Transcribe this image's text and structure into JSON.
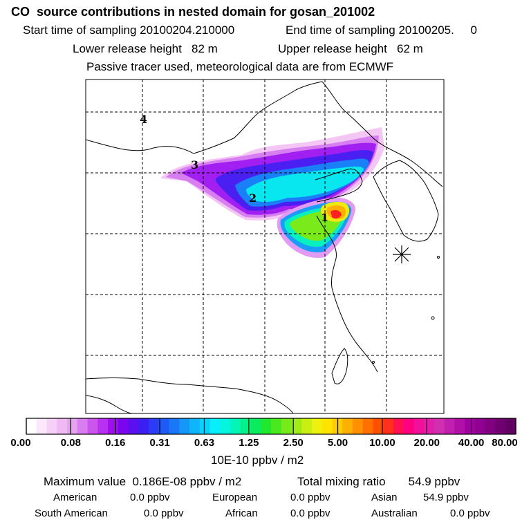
{
  "header": {
    "title": "CO  source contributions in nested domain for gosan_201002",
    "start_label": "Start time of sampling 20100204.210000",
    "end_label": "End time of sampling 20100205.     0",
    "lower_label": "Lower release height   82 m",
    "upper_label": "Upper release height   62 m",
    "tracer_note": "Passive tracer used, meteorological data are from ECMWF"
  },
  "chart_data": {
    "type": "heatmap",
    "title": "CO  source contributions in nested domain for gosan_201002",
    "region_markers": [
      "1",
      "2",
      "3",
      "4"
    ],
    "site_marker": "receptor (Gosan)",
    "colorbar": {
      "ticks": [
        "0.00",
        "0.08",
        "0.16",
        "0.31",
        "0.63",
        "1.25",
        "2.50",
        "5.00",
        "10.00",
        "20.00",
        "40.00",
        "80.00"
      ],
      "units": "10E-10 ppbv / m2",
      "colors": [
        "#ffffff",
        "#fbe8fb",
        "#f5d1f7",
        "#efbaf3",
        "#e6a3f0",
        "#da7df0",
        "#cc55f0",
        "#b930f0",
        "#9f10f0",
        "#7a05ee",
        "#5a10f0",
        "#3b1ff2",
        "#2a3cf5",
        "#1f5af7",
        "#1a78f8",
        "#1596f9",
        "#0fb4fa",
        "#0ad2fb",
        "#08eefa",
        "#05f5e0",
        "#05f5b6",
        "#05f08a",
        "#0aec5c",
        "#20e830",
        "#4ae81e",
        "#76ea1a",
        "#a0ec16",
        "#c8ee12",
        "#eef00e",
        "#ffe400",
        "#ffcc00",
        "#ffb000",
        "#ff9000",
        "#ff7000",
        "#ff5000",
        "#ff3020",
        "#ff1050",
        "#ff0080",
        "#f0109a",
        "#e020a8",
        "#d030b0",
        "#c020b0",
        "#b010a8",
        "#a000a0",
        "#900090",
        "#800080",
        "#700070",
        "#600060"
      ]
    },
    "stats": {
      "max_label": "Maximum value  0.186E-08 ppbv / m2",
      "total_label": "Total mixing ratio       54.9 ppbv"
    },
    "contributions": [
      {
        "name": "American",
        "value": "0.0 ppbv"
      },
      {
        "name": "European",
        "value": "0.0 ppbv"
      },
      {
        "name": "Asian",
        "value": "54.9 ppbv"
      },
      {
        "name": "South American",
        "value": "0.0 ppbv"
      },
      {
        "name": "African",
        "value": "0.0 ppbv"
      },
      {
        "name": "Australian",
        "value": "0.0 ppbv"
      }
    ]
  }
}
